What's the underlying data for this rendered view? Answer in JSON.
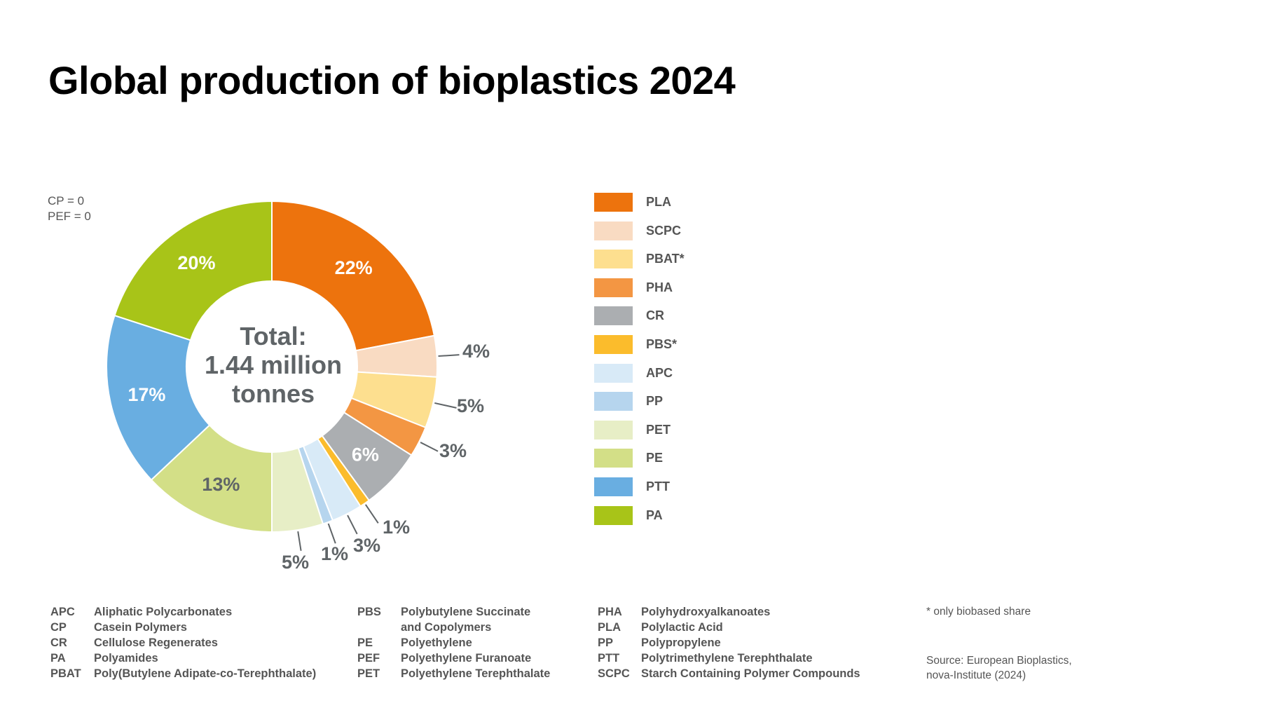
{
  "title": "Global production of bioplastics 2024",
  "notes": [
    "CP   = 0",
    "PEF = 0"
  ],
  "chart_data": {
    "type": "pie",
    "donut": true,
    "center_label": [
      "Total:",
      "1.44 million",
      "tonnes"
    ],
    "slices": [
      {
        "name": "PLA",
        "value": 22,
        "label": "22%",
        "color": "#ED730D"
      },
      {
        "name": "SCPC",
        "value": 4,
        "label": "4%",
        "color": "#F9DBC2"
      },
      {
        "name": "PBAT*",
        "value": 5,
        "label": "5%",
        "color": "#FDDF8F"
      },
      {
        "name": "PHA",
        "value": 3,
        "label": "3%",
        "color": "#F39643"
      },
      {
        "name": "CR",
        "value": 6,
        "label": "6%",
        "color": "#ABAEB1"
      },
      {
        "name": "PBS*",
        "value": 1,
        "label": "1%",
        "color": "#FBBC2C"
      },
      {
        "name": "APC",
        "value": 3,
        "label": "3%",
        "color": "#D8EAF7"
      },
      {
        "name": "PP",
        "value": 1,
        "label": "1%",
        "color": "#B6D5EE"
      },
      {
        "name": "PET",
        "value": 5,
        "label": "5%",
        "color": "#E7EEC6"
      },
      {
        "name": "PE",
        "value": 13,
        "label": "13%",
        "color": "#D3DF87"
      },
      {
        "name": "PTT",
        "value": 17,
        "label": "17%",
        "color": "#69AEE1"
      },
      {
        "name": "PA",
        "value": 20,
        "label": "20%",
        "color": "#A8C418"
      }
    ]
  },
  "legend": [
    {
      "label": "PLA",
      "color": "#ED730D"
    },
    {
      "label": "SCPC",
      "color": "#F9DBC2"
    },
    {
      "label": "PBAT*",
      "color": "#FDDF8F"
    },
    {
      "label": "PHA",
      "color": "#F39643"
    },
    {
      "label": "CR",
      "color": "#ABAEB1"
    },
    {
      "label": "PBS*",
      "color": "#FBBC2C"
    },
    {
      "label": "APC",
      "color": "#D8EAF7"
    },
    {
      "label": "PP",
      "color": "#B6D5EE"
    },
    {
      "label": "PET",
      "color": "#E7EEC6"
    },
    {
      "label": "PE",
      "color": "#D3DF87"
    },
    {
      "label": "PTT",
      "color": "#69AEE1"
    },
    {
      "label": "PA",
      "color": "#A8C418"
    }
  ],
  "abbreviations": [
    [
      {
        "code": "APC",
        "def": "Aliphatic Polycarbonates"
      },
      {
        "code": "CP",
        "def": "Casein Polymers"
      },
      {
        "code": "CR",
        "def": "Cellulose Regenerates"
      },
      {
        "code": "PA",
        "def": "Polyamides"
      },
      {
        "code": "PBAT",
        "def": "Poly(Butylene Adipate-co-Terephthalate)"
      }
    ],
    [
      {
        "code": "PBS",
        "def": "Polybutylene Succinate"
      },
      {
        "code": "",
        "def": "and Copolymers"
      },
      {
        "code": "PE",
        "def": "Polyethylene"
      },
      {
        "code": "PEF",
        "def": "Polyethylene Furanoate"
      },
      {
        "code": "PET",
        "def": "Polyethylene Terephthalate"
      }
    ],
    [
      {
        "code": "PHA",
        "def": "Polyhydroxyalkanoates"
      },
      {
        "code": "PLA",
        "def": "Polylactic Acid"
      },
      {
        "code": "PP",
        "def": "Polypropylene"
      },
      {
        "code": "PTT",
        "def": "Polytrimethylene Terephthalate"
      },
      {
        "code": "SCPC",
        "def": "Starch Containing Polymer Compounds"
      }
    ]
  ],
  "footnote": "* only biobased share",
  "source": [
    "Source: European Bioplastics,",
    "nova-Institute (2024)"
  ]
}
